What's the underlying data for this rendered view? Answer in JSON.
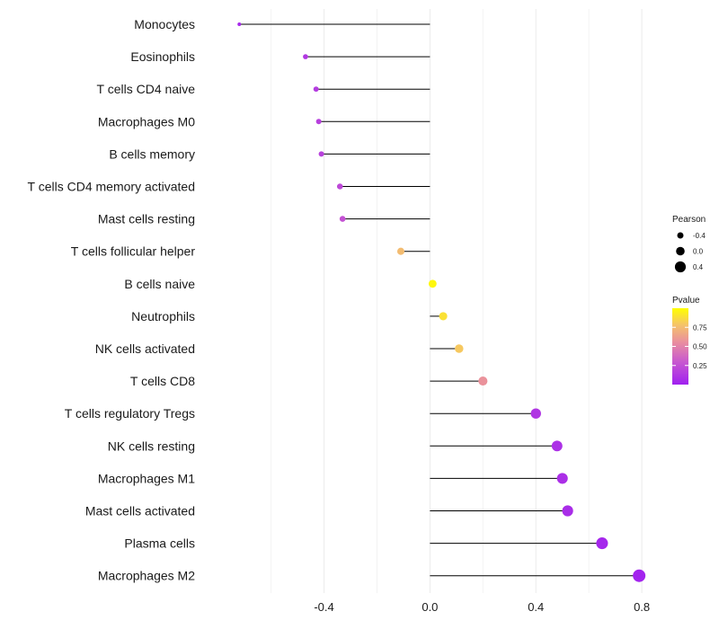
{
  "chart_data": {
    "type": "lollipop",
    "categories": [
      "Monocytes",
      "Eosinophils",
      "T cells CD4 naive",
      "Macrophages M0",
      "B cells memory",
      "T cells CD4 memory activated",
      "Mast cells resting",
      "T cells follicular helper",
      "B cells naive",
      "Neutrophils",
      "NK cells activated",
      "T cells CD8",
      "T cells regulatory  Tregs ",
      "NK cells resting",
      "Macrophages M1",
      "Mast cells activated",
      "Plasma cells",
      "Macrophages M2"
    ],
    "values": [
      -0.72,
      -0.47,
      -0.43,
      -0.42,
      -0.41,
      -0.34,
      -0.33,
      -0.11,
      0.01,
      0.05,
      0.11,
      0.2,
      0.4,
      0.48,
      0.5,
      0.52,
      0.65,
      0.79
    ],
    "pvalues": [
      0.05,
      0.13,
      0.15,
      0.17,
      0.18,
      0.22,
      0.26,
      0.75,
      0.97,
      0.89,
      0.8,
      0.57,
      0.12,
      0.09,
      0.08,
      0.07,
      0.04,
      0.02
    ],
    "xticks": [
      -0.4,
      0.0,
      0.4,
      0.8
    ],
    "xtick_labels": [
      "-0.4",
      "0.0",
      "0.4",
      "0.8"
    ],
    "xlim": [
      -0.86,
      0.82
    ],
    "legend_size": {
      "title": "Pearson",
      "labels": [
        "-0.4",
        "0.0",
        "0.4"
      ],
      "values": [
        -0.4,
        0.0,
        0.4
      ]
    },
    "legend_color": {
      "title": "Pvalue",
      "labels": [
        "0.75",
        "0.50",
        "0.25"
      ],
      "values": [
        0.75,
        0.5,
        0.25
      ],
      "range": [
        0.0,
        1.0
      ]
    },
    "colors": {
      "low": "#a020f0",
      "mid": "#e67fb0",
      "high": "#ffff00",
      "grid": "#ebebeb",
      "stem": "#000000"
    }
  }
}
